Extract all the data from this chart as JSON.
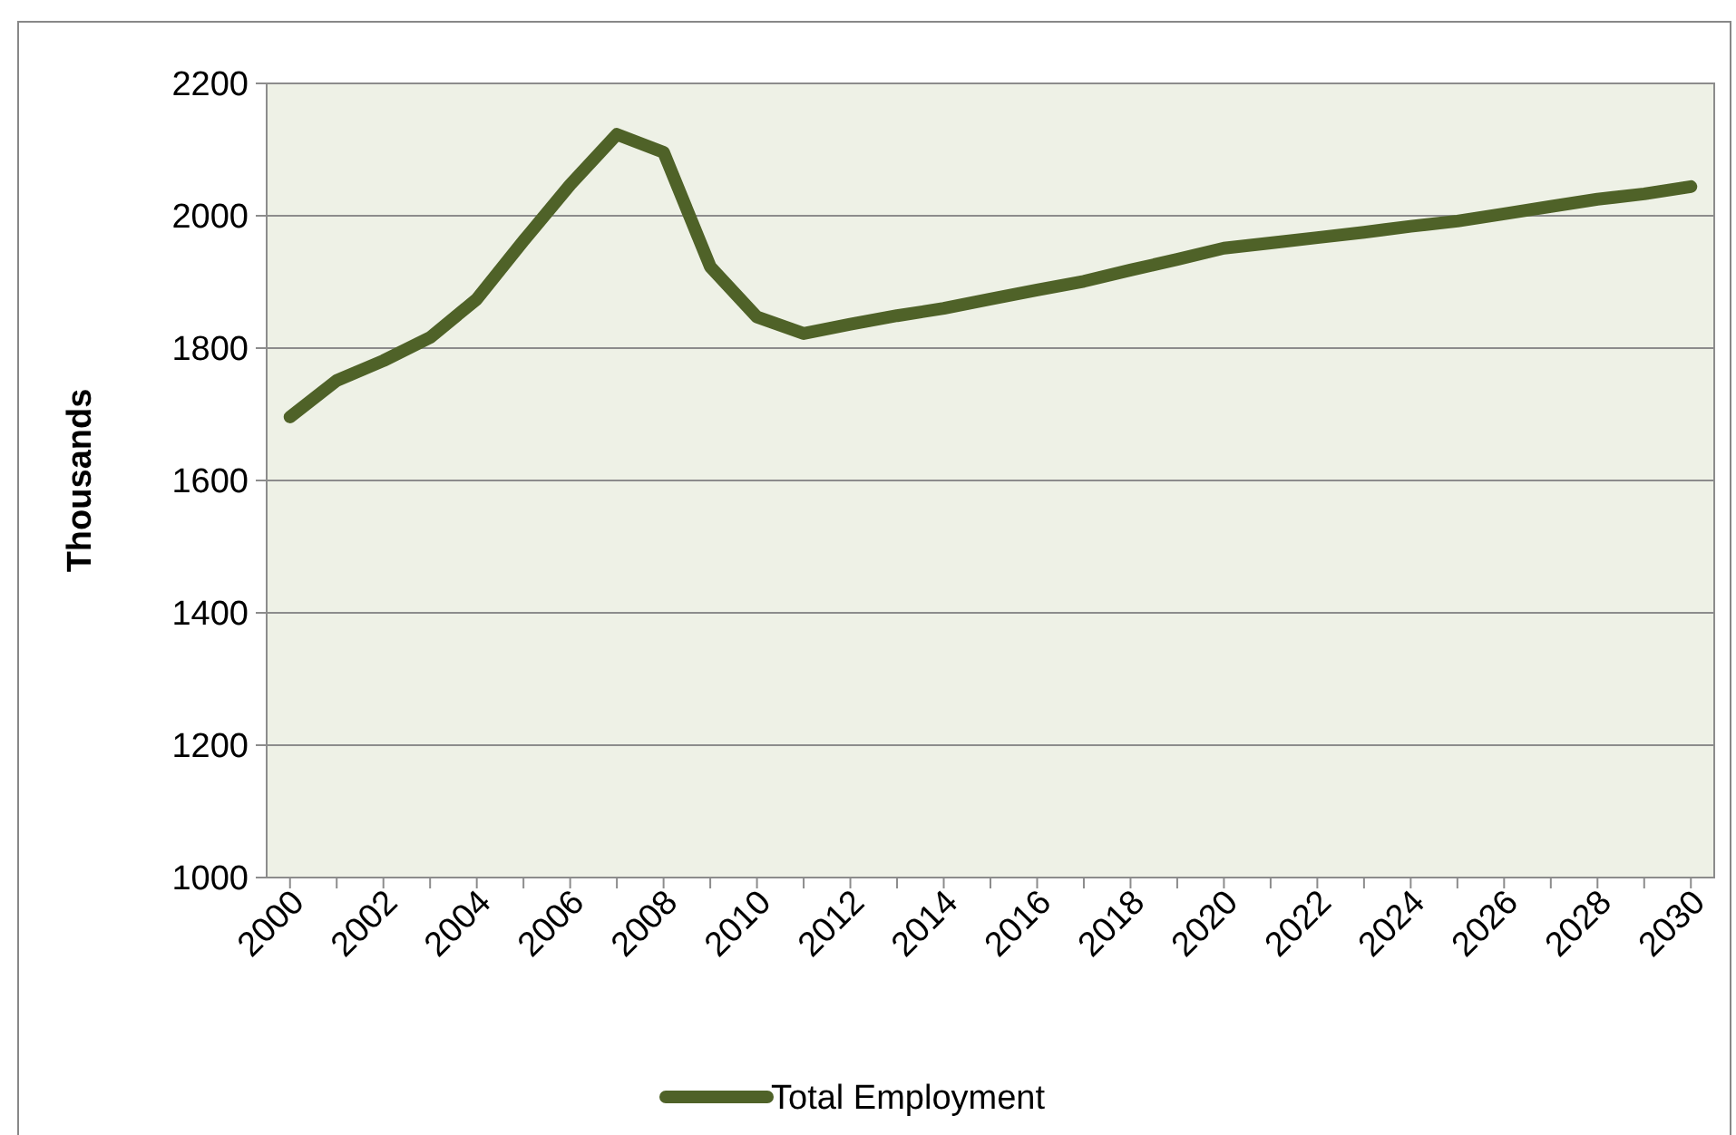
{
  "chart_data": {
    "type": "line",
    "ylabel": "Thousands",
    "categories": [
      "2000",
      null,
      "2002",
      null,
      "2004",
      null,
      "2006",
      null,
      "2008",
      null,
      "2010",
      null,
      "2012",
      null,
      "2014",
      null,
      "2016",
      null,
      "2018",
      null,
      "2020",
      null,
      "2022",
      null,
      "2024",
      null,
      "2026",
      null,
      "2028",
      null,
      "2030"
    ],
    "series": [
      {
        "name": "Total Employment",
        "color": "#4f6228",
        "values": [
          1696,
          1751,
          1781,
          1816,
          1874,
          1962,
          2047,
          2123,
          2096,
          1923,
          1847,
          1822,
          1836,
          1849,
          1860,
          1874,
          1888,
          1901,
          1918,
          1934,
          1951,
          1959,
          1967,
          1975,
          1984,
          1992,
          2003,
          2014,
          2025,
          2033,
          2044
        ]
      }
    ],
    "ylim": [
      1000,
      2200
    ],
    "yticks": [
      1000,
      1200,
      1400,
      1600,
      1800,
      2000,
      2200
    ],
    "grid": "y",
    "legend": "bottom",
    "marker": "none",
    "line_style": "solid"
  }
}
